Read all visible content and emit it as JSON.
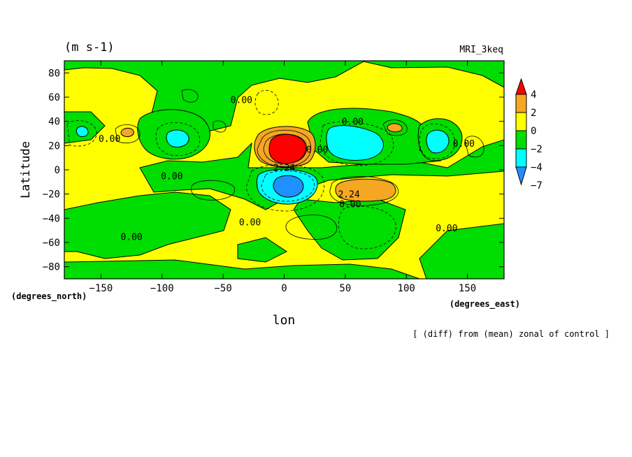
{
  "chart_data": {
    "type": "heatmap",
    "subtype": "filled-contour map",
    "unit_label": "(m s-1)",
    "model_label": "MRI_3keq",
    "ylabel": "Latitude",
    "ylabel_units": "(degrees_north)",
    "xlabel": "lon",
    "xlabel_units": "(degrees_east)",
    "footnote": "[ (diff) from (mean) zonal of control ]",
    "xlim": [
      -180,
      180
    ],
    "ylim": [
      -90,
      90
    ],
    "x_ticks": [
      -150,
      -100,
      -50,
      0,
      50,
      100,
      150
    ],
    "y_ticks": [
      -80,
      -60,
      -40,
      -20,
      0,
      20,
      40,
      60,
      80
    ],
    "colorbar": {
      "tick_labels": [
        "4",
        "2",
        "0",
        "-2",
        "-4",
        "-7"
      ],
      "bins": [
        {
          "range": "> 4",
          "color": "#ff0000"
        },
        {
          "range": "2 to 4",
          "color": "#f5a623"
        },
        {
          "range": "0 to 2",
          "color": "#ffff00"
        },
        {
          "range": "-2 to 0",
          "color": "#00dd00"
        },
        {
          "range": "-4 to -2",
          "color": "#00ffff"
        },
        {
          "range": "< -4",
          "color": "#1e90ff"
        }
      ]
    },
    "contour_labels": [
      {
        "lon": -143,
        "lat": 26,
        "text": "0.00"
      },
      {
        "lon": -92,
        "lat": -5,
        "text": "0.00"
      },
      {
        "lon": -35,
        "lat": 58,
        "text": "0.00"
      },
      {
        "lon": 27,
        "lat": 17,
        "text": "0.00"
      },
      {
        "lon": 56,
        "lat": 40,
        "text": "0.00"
      },
      {
        "lon": 54,
        "lat": -28,
        "text": "0.00"
      },
      {
        "lon": 147,
        "lat": 22,
        "text": "0.00"
      },
      {
        "lon": -28,
        "lat": -43,
        "text": "0.00"
      },
      {
        "lon": -125,
        "lat": -55,
        "text": "0.00"
      },
      {
        "lon": 133,
        "lat": -48,
        "text": "0.00"
      },
      {
        "lon": 0,
        "lat": 2,
        "text": "2.24"
      },
      {
        "lon": 53,
        "lat": -20,
        "text": "2.24"
      }
    ],
    "regions": [
      {
        "name": "equatorial-max-north",
        "lon": 4,
        "lat": 15,
        "value_range": "> 4"
      },
      {
        "name": "equatorial-min-south",
        "lon": 2,
        "lat": -13,
        "value_range": "< -4"
      },
      {
        "name": "positive-band-south-east",
        "lon": 63,
        "lat": -16,
        "value_range": "2 to 4"
      },
      {
        "name": "negative-band-north-east",
        "lon": 60,
        "lat": 22,
        "value_range": "-4 to -2"
      }
    ]
  }
}
